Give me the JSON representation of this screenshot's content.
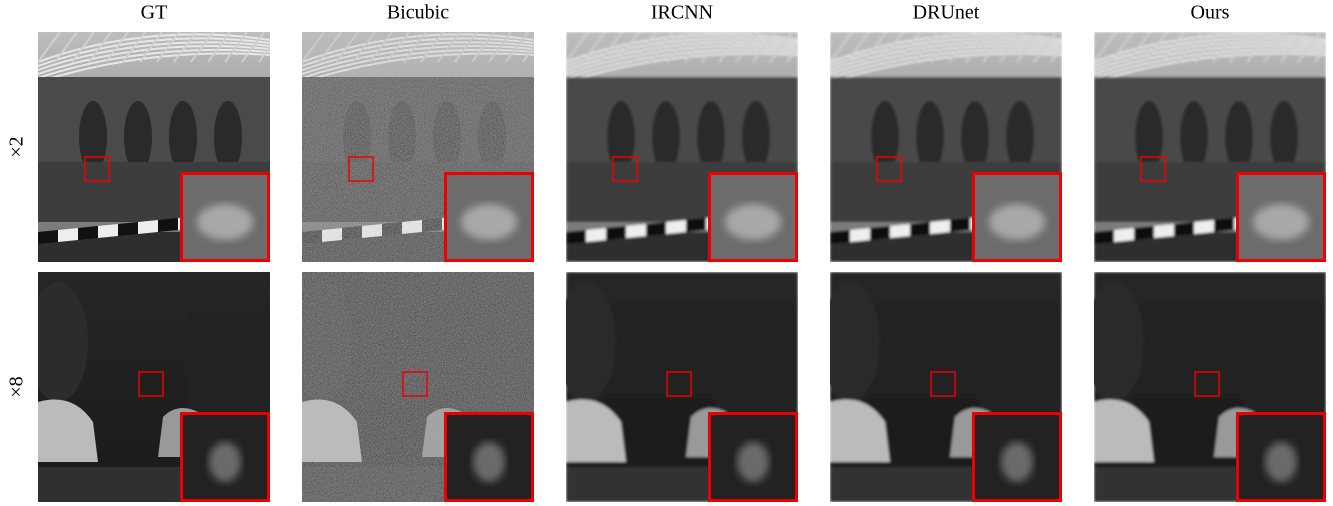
{
  "figure": {
    "columns": [
      "GT",
      "Bicubic",
      "IRCNN",
      "DRUnet",
      "Ours"
    ],
    "rows": [
      "×2",
      "×8"
    ]
  }
}
